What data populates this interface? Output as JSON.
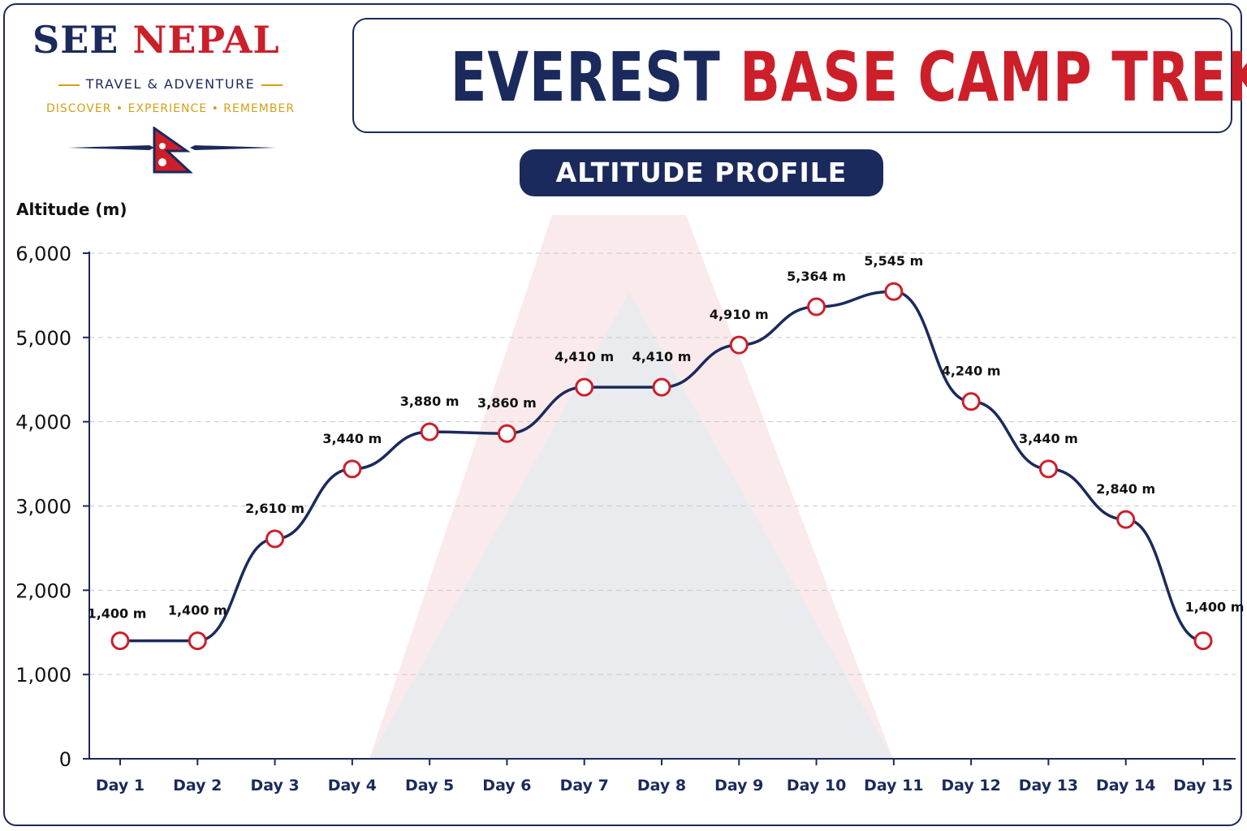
{
  "brand": {
    "see": "SEE",
    "nepal": "NEPAL",
    "tagline": "TRAVEL & ADVENTURE",
    "motto": "DISCOVER • EXPERIENCE • REMEMBER"
  },
  "title": {
    "part1": "EVEREST",
    "part2": "BASE CAMP TREK"
  },
  "subtitle": "ALTITUDE PROFILE",
  "colors": {
    "navy": "#1b2a5c",
    "red": "#cc1f2a",
    "gold": "#d4a017"
  },
  "chart_data": {
    "type": "line",
    "title": "EVEREST BASE CAMP TREK",
    "subtitle": "ALTITUDE PROFILE",
    "ylabel": "Altitude (m)",
    "xlabel": "",
    "categories": [
      "Day 1",
      "Day 2",
      "Day 3",
      "Day 4",
      "Day 5",
      "Day 6",
      "Day 7",
      "Day 8",
      "Day 9",
      "Day 10",
      "Day 11",
      "Day 12",
      "Day 13",
      "Day 14",
      "Day 15"
    ],
    "values": [
      1400,
      1400,
      2610,
      3440,
      3880,
      3860,
      4410,
      4410,
      4910,
      5364,
      5545,
      4240,
      3440,
      2840,
      1400
    ],
    "data_labels": [
      "1,400 m",
      "1,400 m",
      "2,610 m",
      "3,440 m",
      "3,880 m",
      "3,860 m",
      "4,410 m",
      "4,410 m",
      "4,910 m",
      "5,364 m",
      "5,545 m",
      "4,240 m",
      "3,440 m",
      "2,840 m",
      "1,400 m"
    ],
    "ylim": [
      0,
      6000
    ],
    "yticks": [
      0,
      1000,
      2000,
      3000,
      4000,
      5000,
      6000
    ],
    "ytick_labels": [
      "0",
      "1,000",
      "2,000",
      "3,000",
      "4,000",
      "5,000",
      "6,000"
    ],
    "grid": true,
    "legend": "none"
  }
}
